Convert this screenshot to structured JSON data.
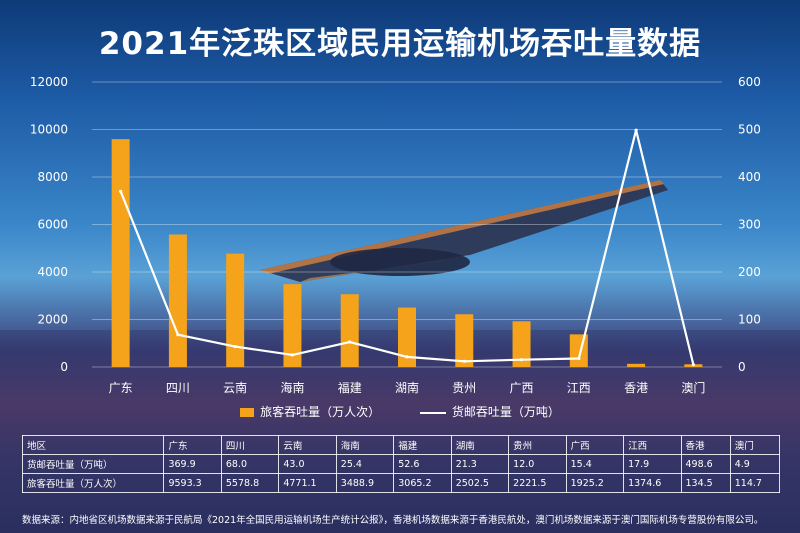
{
  "title": "2021年泛珠区域民用运输机场吞吐量数据",
  "chart_data": {
    "type": "bar+line",
    "categories": [
      "广东",
      "四川",
      "云南",
      "海南",
      "福建",
      "湖南",
      "贵州",
      "广西",
      "江西",
      "香港",
      "澳门"
    ],
    "series": [
      {
        "name": "旅客吞吐量（万人次）",
        "type": "bar",
        "axis": "left",
        "color": "#f5a31a",
        "values": [
          9593.3,
          5578.8,
          4771.1,
          3488.9,
          3065.2,
          2502.5,
          2221.5,
          1925.2,
          1374.6,
          134.5,
          114.7
        ]
      },
      {
        "name": "货邮吞吐量（万吨）",
        "type": "line",
        "axis": "right",
        "color": "#ffffff",
        "values": [
          369.9,
          68.0,
          43.0,
          25.4,
          52.6,
          21.3,
          12.0,
          15.4,
          17.9,
          498.6,
          4.9
        ]
      }
    ],
    "y_left": {
      "min": 0,
      "max": 12000,
      "ticks": [
        "0",
        "2000",
        "4000",
        "6000",
        "8000",
        "10000",
        "12000"
      ]
    },
    "y_right": {
      "min": 0,
      "max": 600,
      "ticks": [
        "0",
        "100",
        "200",
        "300",
        "400",
        "500",
        "600"
      ]
    },
    "grid": true,
    "legend_position": "bottom"
  },
  "legend": {
    "bar_label": "旅客吞吐量（万人次）",
    "line_label": "货邮吞吐量（万吨）"
  },
  "table": {
    "header": [
      "地区",
      "广东",
      "四川",
      "云南",
      "海南",
      "福建",
      "湖南",
      "贵州",
      "广西",
      "江西",
      "香港",
      "澳门"
    ],
    "rows": [
      [
        "货邮吞吐量（万吨）",
        "369.9",
        "68.0",
        "43.0",
        "25.4",
        "52.6",
        "21.3",
        "12.0",
        "15.4",
        "17.9",
        "498.6",
        "4.9"
      ],
      [
        "旅客吞吐量（万人次）",
        "9593.3",
        "5578.8",
        "4771.1",
        "3488.9",
        "3065.2",
        "2502.5",
        "2221.5",
        "1925.2",
        "1374.6",
        "134.5",
        "114.7"
      ]
    ]
  },
  "source": "数据来源：内地省区机场数据来源于民航局《2021年全国民用运输机场生产统计公报》，香港机场数据来源于香港民航处，澳门机场数据来源于澳门国际机场专营股份有限公司。"
}
